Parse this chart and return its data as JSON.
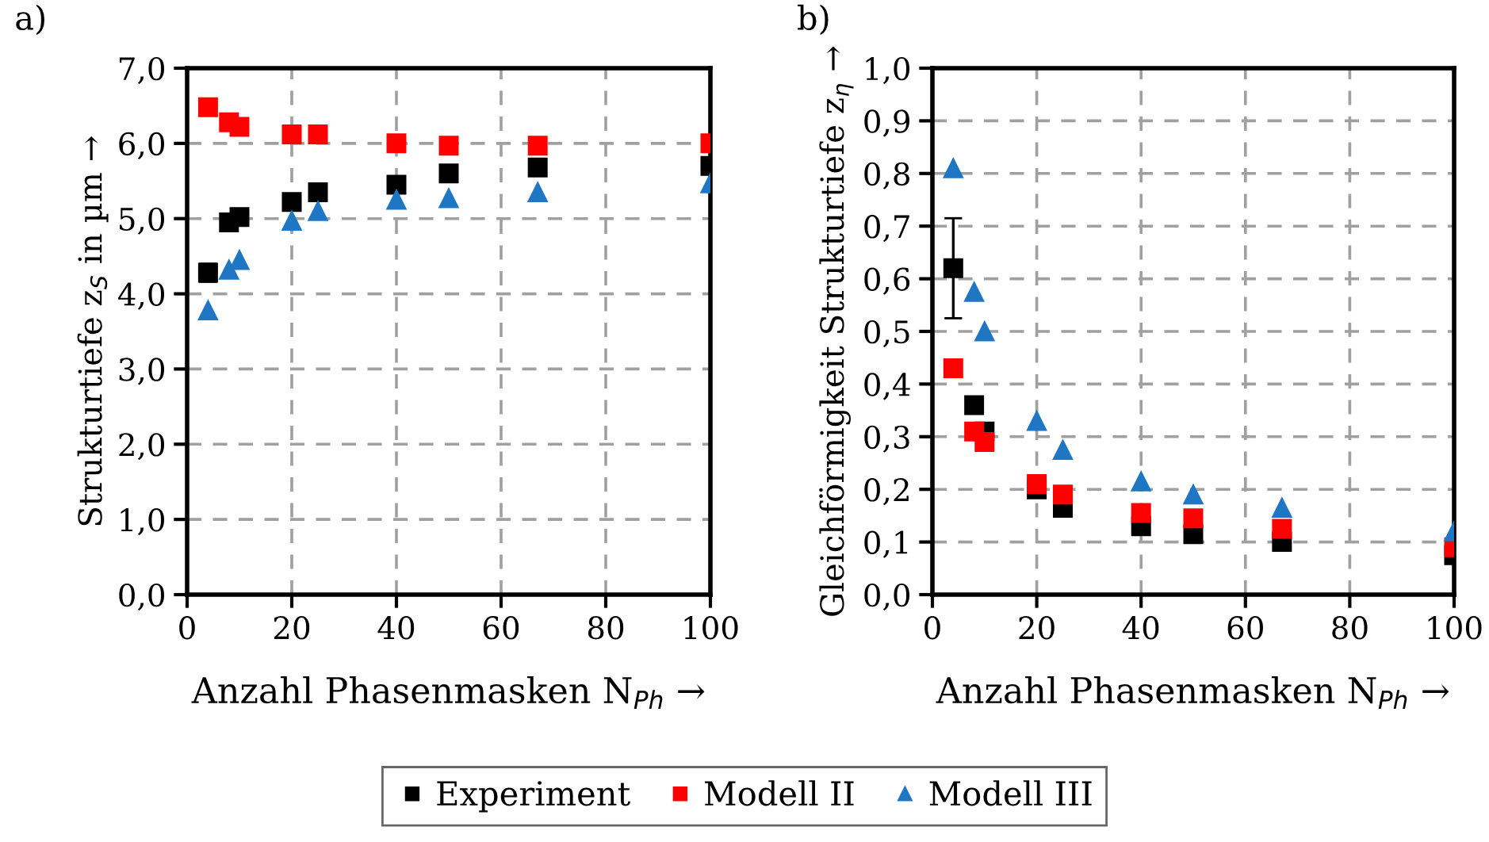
{
  "chart_data": [
    {
      "type": "scatter",
      "title": "a)",
      "xlabel": "Anzahl Phasenmasken N$_{Ph}$ →",
      "ylabel": "Strukturtiefe z$_{S}$ in µm →",
      "xlim": [
        0,
        100
      ],
      "xticks": [
        0,
        20,
        40,
        60,
        80,
        100
      ],
      "ylim": [
        0,
        7
      ],
      "yticks": [
        {
          "value": 0,
          "label": "0,0"
        },
        {
          "value": 1,
          "label": "1,0"
        },
        {
          "value": 2,
          "label": "2,0"
        },
        {
          "value": 3,
          "label": "3,0"
        },
        {
          "value": 4,
          "label": "4,0"
        },
        {
          "value": 5,
          "label": "5,0"
        },
        {
          "value": 6,
          "label": "6,0"
        },
        {
          "value": 7,
          "label": "7,0"
        }
      ],
      "grid": true,
      "legend": "bottom",
      "series": [
        {
          "name": "Experiment",
          "color": "#000000",
          "marker": "square",
          "x": [
            4,
            8,
            10,
            20,
            25,
            40,
            50,
            67,
            100
          ],
          "values": [
            4.28,
            4.95,
            5.02,
            5.22,
            5.35,
            5.45,
            5.6,
            5.68,
            5.7
          ],
          "errors": [
            0.12,
            null,
            null,
            0.1,
            null,
            null,
            null,
            null,
            null
          ]
        },
        {
          "name": "Modell II",
          "color": "#ff0000",
          "marker": "square",
          "x": [
            4,
            8,
            10,
            20,
            25,
            40,
            50,
            67,
            100
          ],
          "values": [
            6.48,
            6.28,
            6.22,
            6.12,
            6.12,
            6.0,
            5.97,
            5.97,
            6.0
          ]
        },
        {
          "name": "Modell III",
          "color": "#1f77c4",
          "marker": "triangle",
          "x": [
            4,
            8,
            10,
            20,
            25,
            40,
            50,
            67,
            100
          ],
          "values": [
            3.78,
            4.32,
            4.45,
            4.97,
            5.1,
            5.25,
            5.27,
            5.35,
            5.47
          ]
        }
      ]
    },
    {
      "type": "scatter",
      "title": "b)",
      "xlabel": "Anzahl Phasenmasken N$_{Ph}$ →",
      "ylabel": "Gleichförmigkeit Strukturtiefe z$_{η}$ →",
      "xlim": [
        0,
        100
      ],
      "xticks": [
        0,
        20,
        40,
        60,
        80,
        100
      ],
      "ylim": [
        0,
        1
      ],
      "yticks": [
        {
          "value": 0,
          "label": "0,0"
        },
        {
          "value": 0.1,
          "label": "0,1"
        },
        {
          "value": 0.2,
          "label": "0,2"
        },
        {
          "value": 0.3,
          "label": "0,3"
        },
        {
          "value": 0.4,
          "label": "0,4"
        },
        {
          "value": 0.5,
          "label": "0,5"
        },
        {
          "value": 0.6,
          "label": "0,6"
        },
        {
          "value": 0.7,
          "label": "0,7"
        },
        {
          "value": 0.8,
          "label": "0,8"
        },
        {
          "value": 0.9,
          "label": "0,9"
        },
        {
          "value": 1,
          "label": "1,0"
        }
      ],
      "grid": true,
      "series": [
        {
          "color": "#000000",
          "marker": "square",
          "x": [
            4,
            8,
            10,
            20,
            25,
            40,
            50,
            67,
            100
          ],
          "values": [
            0.62,
            0.36,
            0.31,
            0.2,
            0.165,
            0.13,
            0.115,
            0.1,
            0.075
          ],
          "errors": [
            0.095,
            null,
            null,
            0.015,
            null,
            null,
            null,
            null,
            null
          ]
        },
        {
          "color": "#ff0000",
          "marker": "square",
          "x": [
            4,
            8,
            10,
            20,
            25,
            40,
            50,
            67,
            100
          ],
          "values": [
            0.43,
            0.31,
            0.29,
            0.21,
            0.19,
            0.155,
            0.145,
            0.125,
            0.09
          ]
        },
        {
          "color": "#1f77c4",
          "marker": "triangle",
          "x": [
            4,
            8,
            10,
            20,
            25,
            40,
            50,
            67,
            100
          ],
          "values": [
            0.81,
            0.575,
            0.5,
            0.33,
            0.275,
            0.215,
            0.19,
            0.165,
            0.12
          ]
        }
      ]
    }
  ]
}
